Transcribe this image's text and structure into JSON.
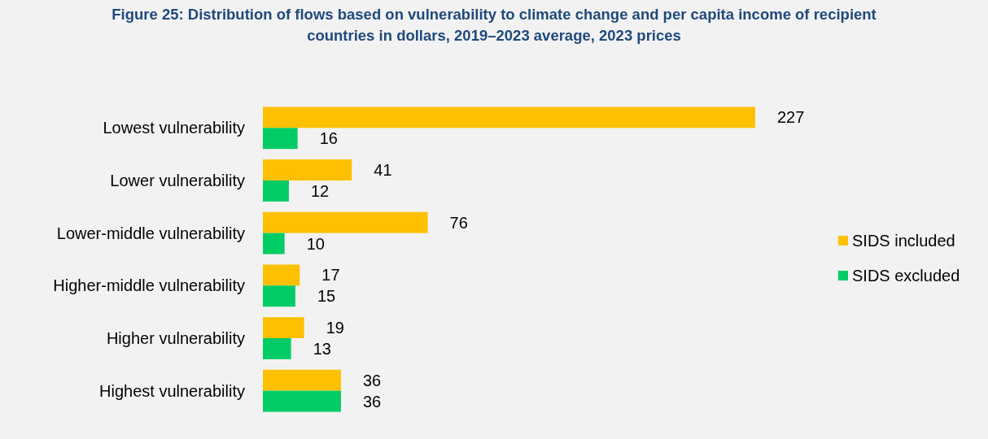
{
  "chart_data": {
    "type": "bar",
    "orientation": "horizontal",
    "title": "Figure 25: Distribution of flows based on vulnerability to climate change and per capita income of recipient countries in dollars, 2019–2023 average, 2023 prices",
    "categories": [
      "Lowest vulnerability",
      "Lower vulnerability",
      "Lower-middle vulnerability",
      "Higher-middle vulnerability",
      "Higher vulnerability",
      "Highest vulnerability"
    ],
    "series": [
      {
        "name": "SIDS included",
        "color": "#ffc000",
        "values": [
          227,
          41,
          76,
          17,
          19,
          36
        ]
      },
      {
        "name": "SIDS excluded",
        "color": "#00cc66",
        "values": [
          16,
          12,
          10,
          15,
          13,
          36
        ]
      }
    ],
    "data_labels": true,
    "legend": "right",
    "grid": false
  }
}
